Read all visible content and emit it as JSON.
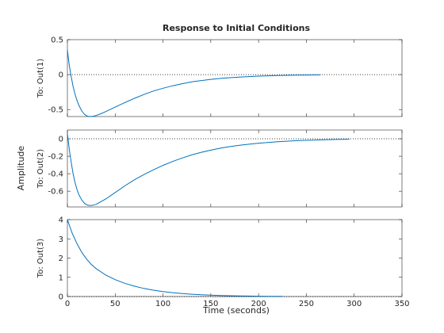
{
  "chart_data": {
    "type": "line",
    "title": "Response to Initial Conditions",
    "xlabel": "Time (seconds)",
    "ylabel": "Amplitude",
    "xlim": [
      0,
      350
    ],
    "xticks": [
      0,
      50,
      100,
      150,
      200,
      250,
      300,
      350
    ],
    "grid": false,
    "line_color": "#0072BD",
    "reference_line": {
      "value": 0,
      "style": "dotted",
      "color": "#000000"
    },
    "subplots": [
      {
        "label": "To: Out(1)",
        "ylim": [
          -0.6,
          0.5
        ],
        "yticks": [
          -0.5,
          0,
          0.5
        ],
        "x": [
          0,
          2,
          4,
          6,
          8,
          10,
          12,
          15,
          18,
          21,
          24,
          27,
          30,
          35,
          40,
          50,
          60,
          70,
          80,
          90,
          100,
          110,
          120,
          130,
          140,
          150,
          160,
          170,
          180,
          190,
          200,
          220,
          240,
          265
        ],
        "y": [
          0.35,
          0.13,
          -0.03,
          -0.17,
          -0.28,
          -0.37,
          -0.44,
          -0.52,
          -0.57,
          -0.595,
          -0.6,
          -0.595,
          -0.585,
          -0.56,
          -0.53,
          -0.465,
          -0.4,
          -0.34,
          -0.285,
          -0.235,
          -0.195,
          -0.16,
          -0.13,
          -0.105,
          -0.085,
          -0.068,
          -0.055,
          -0.044,
          -0.035,
          -0.028,
          -0.022,
          -0.014,
          -0.008,
          -0.004
        ]
      },
      {
        "label": "To: Out(2)",
        "ylim": [
          -0.78,
          0.1
        ],
        "yticks": [
          -0.6,
          -0.4,
          -0.2,
          0
        ],
        "x": [
          0,
          2,
          4,
          6,
          8,
          10,
          12,
          15,
          18,
          21,
          24,
          27,
          30,
          35,
          40,
          50,
          60,
          70,
          80,
          90,
          100,
          110,
          120,
          130,
          140,
          150,
          160,
          170,
          180,
          190,
          200,
          220,
          240,
          260,
          280,
          295
        ],
        "y": [
          0.06,
          -0.12,
          -0.27,
          -0.4,
          -0.5,
          -0.58,
          -0.64,
          -0.7,
          -0.74,
          -0.76,
          -0.765,
          -0.76,
          -0.75,
          -0.72,
          -0.69,
          -0.615,
          -0.54,
          -0.47,
          -0.41,
          -0.355,
          -0.305,
          -0.26,
          -0.22,
          -0.185,
          -0.155,
          -0.13,
          -0.108,
          -0.09,
          -0.075,
          -0.062,
          -0.051,
          -0.034,
          -0.022,
          -0.014,
          -0.008,
          -0.005
        ]
      },
      {
        "label": "To: Out(3)",
        "ylim": [
          0,
          4
        ],
        "yticks": [
          0,
          1,
          2,
          3,
          4
        ],
        "x": [
          0,
          5,
          10,
          15,
          20,
          25,
          30,
          40,
          50,
          60,
          70,
          80,
          90,
          100,
          110,
          120,
          130,
          140,
          150,
          160,
          170,
          180,
          190,
          200,
          210,
          225
        ],
        "y": [
          4.0,
          3.3,
          2.75,
          2.3,
          1.95,
          1.67,
          1.45,
          1.12,
          0.88,
          0.69,
          0.54,
          0.42,
          0.33,
          0.26,
          0.2,
          0.155,
          0.12,
          0.092,
          0.07,
          0.054,
          0.041,
          0.031,
          0.024,
          0.018,
          0.013,
          0.008
        ]
      }
    ]
  }
}
